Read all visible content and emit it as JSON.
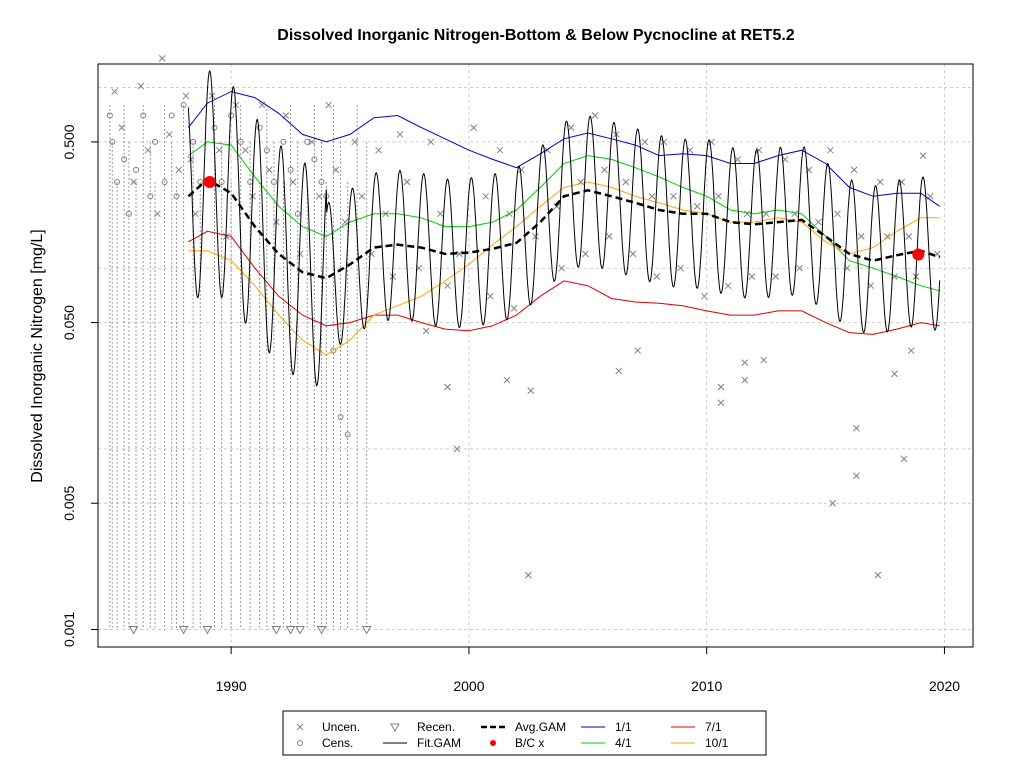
{
  "chart_data": {
    "type": "line",
    "title": "Dissolved Inorganic Nitrogen-Bottom & Below Pycnocline at RET5.2",
    "xlabel": "",
    "ylabel": "Dissolved Inorganic Nitrogen [mg/L]",
    "y_scale": "log",
    "xlim": [
      1984.4,
      2021.2
    ],
    "ylim": [
      0.0008,
      1.35
    ],
    "x_ticks": [
      1990,
      2000,
      2010,
      2020
    ],
    "y_ticks": [
      0.001,
      0.005,
      0.05,
      0.5
    ],
    "y_tick_labels": [
      "0.001",
      "0.005",
      "0.050",
      "0.500"
    ],
    "y_grid": [
      0.001,
      0.005,
      0.05,
      0.5,
      0.01,
      0.1,
      1.0
    ],
    "grid": true,
    "legend_position": "bottom",
    "legend": [
      {
        "label": "Uncen.",
        "symbol": "x",
        "color": "#808080"
      },
      {
        "label": "Cens.",
        "symbol": "o",
        "color": "#808080"
      },
      {
        "label": "Recen.",
        "symbol": "triangle-down",
        "color": "#808080"
      },
      {
        "label": "Fit.GAM",
        "symbol": "line",
        "color": "#000000"
      },
      {
        "label": "Avg.GAM",
        "symbol": "dashed",
        "color": "#000000"
      },
      {
        "label": "B/C x",
        "symbol": "dot",
        "color": "#ff0000"
      },
      {
        "label": "1/1",
        "symbol": "line",
        "color": "#0000cc"
      },
      {
        "label": "4/1",
        "symbol": "line",
        "color": "#00cc00"
      },
      {
        "label": "7/1",
        "symbol": "line",
        "color": "#dd0000"
      },
      {
        "label": "10/1",
        "symbol": "line",
        "color": "#ffa500"
      }
    ],
    "series": [
      {
        "name": "1/1",
        "color": "#0000cc",
        "x": [
          1988.2,
          1989,
          1990,
          1991,
          1992,
          1993,
          1994,
          1995,
          1996,
          1997,
          1998,
          1999,
          2000,
          2001,
          2002,
          2003,
          2004,
          2005,
          2006,
          2007,
          2008,
          2009,
          2010,
          2011,
          2012,
          2013,
          2014,
          2015,
          2016,
          2017,
          2018,
          2019,
          2019.8
        ],
        "y": [
          0.6,
          0.82,
          0.95,
          0.88,
          0.72,
          0.55,
          0.5,
          0.55,
          0.68,
          0.7,
          0.6,
          0.52,
          0.45,
          0.4,
          0.36,
          0.43,
          0.52,
          0.56,
          0.52,
          0.48,
          0.42,
          0.43,
          0.42,
          0.38,
          0.38,
          0.42,
          0.45,
          0.38,
          0.28,
          0.25,
          0.26,
          0.26,
          0.22
        ]
      },
      {
        "name": "4/1",
        "color": "#00cc00",
        "x": [
          1988.2,
          1989,
          1990,
          1991,
          1992,
          1993,
          1994,
          1995,
          1996,
          1997,
          1998,
          1999,
          2000,
          2001,
          2002,
          2003,
          2004,
          2005,
          2006,
          2007,
          2008,
          2009,
          2010,
          2011,
          2012,
          2013,
          2014,
          2015,
          2016,
          2017,
          2018,
          2019,
          2019.8
        ],
        "y": [
          0.42,
          0.5,
          0.48,
          0.32,
          0.22,
          0.17,
          0.15,
          0.18,
          0.2,
          0.2,
          0.19,
          0.17,
          0.17,
          0.18,
          0.21,
          0.28,
          0.38,
          0.42,
          0.4,
          0.36,
          0.32,
          0.28,
          0.25,
          0.21,
          0.2,
          0.21,
          0.2,
          0.15,
          0.11,
          0.1,
          0.09,
          0.08,
          0.075
        ]
      },
      {
        "name": "7/1",
        "color": "#dd0000",
        "x": [
          1988.2,
          1989,
          1990,
          1991,
          1992,
          1993,
          1994,
          1995,
          1996,
          1997,
          1998,
          1999,
          2000,
          2001,
          2002,
          2003,
          2004,
          2005,
          2006,
          2007,
          2008,
          2009,
          2010,
          2011,
          2012,
          2013,
          2014,
          2015,
          2016,
          2017,
          2018,
          2019,
          2019.8
        ],
        "y": [
          0.14,
          0.16,
          0.15,
          0.1,
          0.07,
          0.055,
          0.048,
          0.05,
          0.055,
          0.055,
          0.05,
          0.046,
          0.045,
          0.048,
          0.055,
          0.07,
          0.085,
          0.08,
          0.068,
          0.065,
          0.064,
          0.062,
          0.058,
          0.055,
          0.055,
          0.058,
          0.058,
          0.05,
          0.044,
          0.043,
          0.046,
          0.05,
          0.048
        ]
      },
      {
        "name": "10/1",
        "color": "#ffa500",
        "x": [
          1988.2,
          1989,
          1990,
          1991,
          1992,
          1993,
          1994,
          1995,
          1996,
          1997,
          1998,
          1999,
          2000,
          2001,
          2002,
          2003,
          2004,
          2005,
          2006,
          2007,
          2008,
          2009,
          2010,
          2011,
          2012,
          2013,
          2014,
          2015,
          2016,
          2017,
          2018,
          2019,
          2019.8
        ],
        "y": [
          0.125,
          0.125,
          0.11,
          0.08,
          0.055,
          0.04,
          0.033,
          0.04,
          0.055,
          0.062,
          0.07,
          0.085,
          0.105,
          0.135,
          0.17,
          0.22,
          0.28,
          0.3,
          0.28,
          0.25,
          0.23,
          0.21,
          0.2,
          0.18,
          0.18,
          0.19,
          0.18,
          0.14,
          0.12,
          0.13,
          0.16,
          0.19,
          0.19
        ]
      },
      {
        "name": "Avg.GAM",
        "color": "#000000",
        "dash": true,
        "x": [
          1988.2,
          1989,
          1990,
          1991,
          1992,
          1993,
          1994,
          1995,
          1996,
          1997,
          1998,
          1999,
          2000,
          2001,
          2002,
          2003,
          2004,
          2005,
          2006,
          2007,
          2008,
          2009,
          2010,
          2011,
          2012,
          2013,
          2014,
          2015,
          2016,
          2017,
          2018,
          2019,
          2019.8
        ],
        "y": [
          0.25,
          0.31,
          0.26,
          0.17,
          0.12,
          0.095,
          0.088,
          0.105,
          0.13,
          0.135,
          0.13,
          0.12,
          0.122,
          0.128,
          0.138,
          0.18,
          0.25,
          0.27,
          0.25,
          0.23,
          0.21,
          0.2,
          0.2,
          0.18,
          0.175,
          0.18,
          0.185,
          0.15,
          0.12,
          0.11,
          0.118,
          0.125,
          0.115
        ]
      }
    ],
    "fit_gam": {
      "name": "Fit.GAM",
      "color": "#000000",
      "start": 1988.2,
      "end": 2019.8
    },
    "bc_points": [
      {
        "x": 1989.1,
        "y": 0.3
      },
      {
        "x": 2018.9,
        "y": 0.119
      }
    ],
    "uncensored_points": [
      [
        1985.1,
        0.95
      ],
      [
        1985.4,
        0.6
      ],
      [
        1985.9,
        0.3
      ],
      [
        1986.2,
        1.02
      ],
      [
        1986.5,
        0.45
      ],
      [
        1986.9,
        0.2
      ],
      [
        1987.1,
        1.45
      ],
      [
        1987.4,
        0.55
      ],
      [
        1987.8,
        0.35
      ],
      [
        1988.1,
        0.9
      ],
      [
        1988.3,
        0.4
      ],
      [
        1988.5,
        0.2
      ],
      [
        1989.2,
        0.9
      ],
      [
        1989.5,
        0.45
      ],
      [
        1989.8,
        0.15
      ],
      [
        1990.2,
        0.8
      ],
      [
        1990.6,
        0.45
      ],
      [
        1990.9,
        0.25
      ],
      [
        1991.3,
        0.8
      ],
      [
        1991.6,
        0.35
      ],
      [
        1991.9,
        0.18
      ],
      [
        1992.3,
        0.7
      ],
      [
        1992.6,
        0.3
      ],
      [
        1992.9,
        0.12
      ],
      [
        1993.4,
        0.5
      ],
      [
        1993.7,
        0.25
      ],
      [
        1994.1,
        0.8
      ],
      [
        1994.4,
        0.35
      ],
      [
        1994.8,
        0.18
      ],
      [
        1995.2,
        0.5
      ],
      [
        1995.5,
        0.25
      ],
      [
        1995.9,
        0.12
      ],
      [
        1996.2,
        0.45
      ],
      [
        1996.5,
        0.2
      ],
      [
        1996.8,
        0.09
      ],
      [
        1997.1,
        0.55
      ],
      [
        1997.4,
        0.3
      ],
      [
        1997.9,
        0.1
      ],
      [
        1998.4,
        0.5
      ],
      [
        1998.8,
        0.2
      ],
      [
        1999.1,
        0.08
      ],
      [
        1999.6,
        0.12
      ],
      [
        2000.2,
        0.6
      ],
      [
        2000.7,
        0.25
      ],
      [
        2000.9,
        0.07
      ],
      [
        2001.3,
        0.45
      ],
      [
        2001.7,
        0.2
      ],
      [
        2001.9,
        0.06
      ],
      [
        2002.2,
        0.35
      ],
      [
        2002.8,
        0.15
      ],
      [
        2003.3,
        0.45
      ],
      [
        2003.7,
        0.22
      ],
      [
        2003.9,
        0.1
      ],
      [
        2004.3,
        0.6
      ],
      [
        2004.7,
        0.3
      ],
      [
        2004.9,
        0.12
      ],
      [
        2005.3,
        0.7
      ],
      [
        2005.7,
        0.35
      ],
      [
        2005.9,
        0.15
      ],
      [
        2006.2,
        0.55
      ],
      [
        2006.6,
        0.3
      ],
      [
        2006.9,
        0.12
      ],
      [
        2007.4,
        0.5
      ],
      [
        2007.7,
        0.25
      ],
      [
        2007.9,
        0.09
      ],
      [
        2008.2,
        0.5
      ],
      [
        2008.6,
        0.25
      ],
      [
        2008.9,
        0.1
      ],
      [
        2009.3,
        0.45
      ],
      [
        2009.6,
        0.22
      ],
      [
        2009.9,
        0.07
      ],
      [
        2010.2,
        0.5
      ],
      [
        2010.5,
        0.25
      ],
      [
        2010.9,
        0.08
      ],
      [
        2011.3,
        0.4
      ],
      [
        2011.7,
        0.2
      ],
      [
        2011.9,
        0.09
      ],
      [
        2012.2,
        0.45
      ],
      [
        2012.5,
        0.2
      ],
      [
        2012.9,
        0.09
      ],
      [
        2013.3,
        0.4
      ],
      [
        2013.7,
        0.2
      ],
      [
        2013.9,
        0.1
      ],
      [
        2014.3,
        0.35
      ],
      [
        2014.7,
        0.18
      ],
      [
        2015.2,
        0.45
      ],
      [
        2015.5,
        0.2
      ],
      [
        2015.9,
        0.1
      ],
      [
        2016.2,
        0.35
      ],
      [
        2016.5,
        0.15
      ],
      [
        2016.9,
        0.08
      ],
      [
        2017.3,
        0.3
      ],
      [
        2017.6,
        0.15
      ],
      [
        2017.9,
        0.09
      ],
      [
        2018.2,
        0.3
      ],
      [
        2018.5,
        0.15
      ],
      [
        2018.8,
        0.09
      ],
      [
        2019.1,
        0.42
      ],
      [
        2019.4,
        0.25
      ],
      [
        2019.7,
        0.12
      ],
      [
        1998.2,
        0.045
      ],
      [
        1999.1,
        0.022
      ],
      [
        1999.5,
        0.01
      ],
      [
        2001.6,
        0.024
      ],
      [
        2002.6,
        0.021
      ],
      [
        2002.5,
        0.002
      ],
      [
        2006.3,
        0.027
      ],
      [
        2007.1,
        0.035
      ],
      [
        2010.6,
        0.022
      ],
      [
        2010.6,
        0.018
      ],
      [
        2011.6,
        0.024
      ],
      [
        2011.6,
        0.03
      ],
      [
        2012.4,
        0.031
      ],
      [
        2015.3,
        0.005
      ],
      [
        2016.3,
        0.013
      ],
      [
        2016.3,
        0.0071
      ],
      [
        2017.2,
        0.002
      ],
      [
        2017.9,
        0.026
      ],
      [
        2018.3,
        0.0088
      ],
      [
        2018.6,
        0.035
      ]
    ],
    "censored_points": [
      [
        1984.9,
        0.7
      ],
      [
        1985.0,
        0.5
      ],
      [
        1985.2,
        0.3
      ],
      [
        1985.5,
        0.4
      ],
      [
        1985.7,
        0.2
      ],
      [
        1986.0,
        0.35
      ],
      [
        1986.3,
        0.7
      ],
      [
        1986.6,
        0.25
      ],
      [
        1986.8,
        0.5
      ],
      [
        1987.2,
        0.3
      ],
      [
        1987.5,
        0.7
      ],
      [
        1987.7,
        0.25
      ],
      [
        1988.0,
        0.8
      ],
      [
        1988.4,
        0.5
      ],
      [
        1988.7,
        0.3
      ],
      [
        1989.3,
        0.6
      ],
      [
        1989.6,
        0.3
      ],
      [
        1990.0,
        0.7
      ],
      [
        1990.4,
        0.5
      ],
      [
        1990.8,
        0.3
      ],
      [
        1991.2,
        0.6
      ],
      [
        1991.5,
        0.45
      ],
      [
        1991.8,
        0.3
      ],
      [
        1992.2,
        0.5
      ],
      [
        1992.5,
        0.35
      ],
      [
        1992.8,
        0.2
      ],
      [
        1993.2,
        0.5
      ],
      [
        1993.5,
        0.4
      ],
      [
        1993.8,
        0.3
      ],
      [
        1994.0,
        0.25
      ],
      [
        1994.3,
        0.035
      ],
      [
        1994.6,
        0.015
      ],
      [
        1994.9,
        0.012
      ]
    ],
    "recensored_points": [
      [
        1985.9,
        0.001
      ],
      [
        1988.0,
        0.001
      ],
      [
        1989.0,
        0.001
      ],
      [
        1991.9,
        0.001
      ],
      [
        1992.5,
        0.001
      ],
      [
        1992.9,
        0.001
      ],
      [
        1993.8,
        0.001
      ],
      [
        1995.7,
        0.001
      ]
    ],
    "censored_dotted_drops": [
      1984.9,
      1985.0,
      1985.2,
      1985.5,
      1985.7,
      1986.0,
      1986.3,
      1986.6,
      1986.8,
      1987.2,
      1987.5,
      1987.7,
      1988.0,
      1988.4,
      1988.7,
      1989.3,
      1989.6,
      1990.0,
      1990.4,
      1990.8,
      1991.2,
      1991.5,
      1991.8,
      1992.2,
      1992.5,
      1992.8,
      1993.2,
      1993.5,
      1993.8,
      1994.0,
      1994.3,
      1994.6,
      1994.9,
      1995.3,
      1995.7
    ]
  }
}
